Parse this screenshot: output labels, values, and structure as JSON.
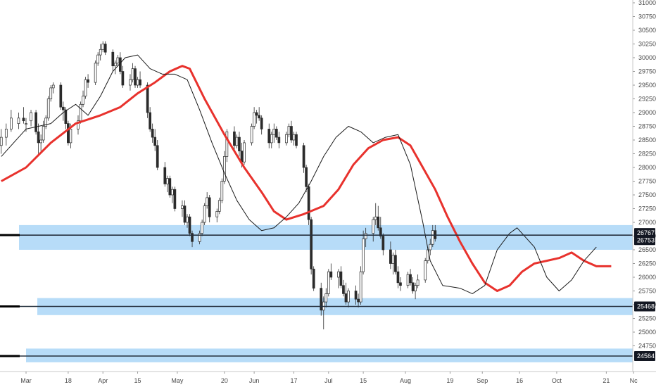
{
  "chart_data": {
    "type": "candlestick",
    "title": "",
    "xlabel": "",
    "ylabel": "",
    "ylim": [
      24300,
      31050
    ],
    "grid": false,
    "y_ticks": [
      24750,
      25000,
      25250,
      25500,
      25750,
      26000,
      26250,
      26500,
      26750,
      27000,
      27250,
      27500,
      27750,
      28000,
      28250,
      28500,
      28750,
      29000,
      29250,
      29500,
      29750,
      30000,
      30250,
      30500,
      30750,
      31000
    ],
    "x_ticks": [
      {
        "label": "Mar",
        "day": 0
      },
      {
        "label": "18",
        "day": 17
      },
      {
        "label": "Apr",
        "day": 31
      },
      {
        "label": "15",
        "day": 45
      },
      {
        "label": "May",
        "day": 61
      },
      {
        "label": "20",
        "day": 80
      },
      {
        "label": "Jun",
        "day": 92
      },
      {
        "label": "17",
        "day": 108
      },
      {
        "label": "Jul",
        "day": 122
      },
      {
        "label": "15",
        "day": 136
      },
      {
        "label": "Aug",
        "day": 153
      },
      {
        "label": "19",
        "day": 171
      },
      {
        "label": "Sep",
        "day": 184
      },
      {
        "label": "16",
        "day": 199
      },
      {
        "label": "Oct",
        "day": 214
      },
      {
        "label": "21",
        "day": 234
      },
      {
        "label": "Nc",
        "day": 245
      }
    ],
    "levels": [
      {
        "value": 26767,
        "label": "26767",
        "zone": [
          26500,
          26950
        ],
        "line_color": "#26313f",
        "zone_color": "#9fd0f5"
      },
      {
        "value": 25468,
        "label": "25468",
        "zone": [
          25310,
          25620
        ],
        "line_color": "#26313f",
        "zone_color": "#9fd0f5"
      },
      {
        "value": 24564,
        "label": "24564",
        "zone": [
          24450,
          24700
        ],
        "line_color": "#26313f",
        "zone_color": "#9fd0f5"
      }
    ],
    "last_price": {
      "value": 26753,
      "label": "26753"
    },
    "series": [
      {
        "kind": "moving-average",
        "color": "#e8322d",
        "points": [
          [
            -10,
            27750
          ],
          [
            0,
            28000
          ],
          [
            10,
            28450
          ],
          [
            20,
            28800
          ],
          [
            30,
            28950
          ],
          [
            38,
            29100
          ],
          [
            45,
            29350
          ],
          [
            52,
            29550
          ],
          [
            58,
            29750
          ],
          [
            63,
            29850
          ],
          [
            66,
            29800
          ],
          [
            72,
            29250
          ],
          [
            80,
            28600
          ],
          [
            88,
            28000
          ],
          [
            95,
            27550
          ],
          [
            100,
            27200
          ],
          [
            105,
            27050
          ],
          [
            112,
            27150
          ],
          [
            120,
            27300
          ],
          [
            126,
            27600
          ],
          [
            132,
            28050
          ],
          [
            138,
            28350
          ],
          [
            144,
            28500
          ],
          [
            150,
            28550
          ],
          [
            155,
            28400
          ],
          [
            160,
            28000
          ],
          [
            165,
            27600
          ],
          [
            170,
            27100
          ],
          [
            175,
            26650
          ],
          [
            180,
            26250
          ],
          [
            185,
            25900
          ],
          [
            190,
            25750
          ],
          [
            195,
            25850
          ],
          [
            200,
            26100
          ],
          [
            205,
            26250
          ],
          [
            210,
            26300
          ],
          [
            215,
            26350
          ],
          [
            220,
            26450
          ],
          [
            225,
            26300
          ],
          [
            230,
            26200
          ],
          [
            236,
            26200
          ]
        ]
      },
      {
        "kind": "moving-average",
        "color": "#1a1a1a",
        "points": [
          [
            -10,
            28200
          ],
          [
            0,
            28700
          ],
          [
            10,
            28800
          ],
          [
            15,
            29000
          ],
          [
            20,
            29150
          ],
          [
            25,
            28950
          ],
          [
            30,
            29300
          ],
          [
            35,
            29750
          ],
          [
            40,
            30000
          ],
          [
            45,
            30050
          ],
          [
            50,
            29800
          ],
          [
            55,
            29700
          ],
          [
            60,
            29700
          ],
          [
            65,
            29600
          ],
          [
            70,
            29050
          ],
          [
            75,
            28450
          ],
          [
            80,
            27900
          ],
          [
            85,
            27400
          ],
          [
            90,
            27050
          ],
          [
            95,
            26850
          ],
          [
            100,
            26900
          ],
          [
            105,
            27100
          ],
          [
            110,
            27350
          ],
          [
            115,
            27750
          ],
          [
            120,
            28200
          ],
          [
            125,
            28550
          ],
          [
            130,
            28750
          ],
          [
            135,
            28650
          ],
          [
            140,
            28450
          ],
          [
            145,
            28550
          ],
          [
            150,
            28600
          ],
          [
            155,
            28050
          ],
          [
            160,
            27000
          ],
          [
            163,
            26300
          ],
          [
            168,
            25850
          ],
          [
            175,
            25800
          ],
          [
            180,
            25700
          ],
          [
            185,
            25850
          ],
          [
            190,
            26500
          ],
          [
            195,
            26800
          ],
          [
            198,
            26900
          ],
          [
            205,
            26550
          ],
          [
            210,
            26000
          ],
          [
            215,
            25750
          ],
          [
            220,
            25950
          ],
          [
            225,
            26300
          ],
          [
            230,
            26550
          ]
        ]
      }
    ],
    "candles": [
      [
        -10,
        28400,
        28700,
        28250,
        28550
      ],
      [
        -8,
        28550,
        28800,
        28400,
        28700
      ],
      [
        -6,
        28700,
        29050,
        28650,
        28900
      ],
      [
        -3,
        28800,
        29000,
        28700,
        28900
      ],
      [
        -1,
        28900,
        29100,
        28800,
        28850
      ],
      [
        0,
        28800,
        28900,
        28650,
        28800
      ],
      [
        2,
        28850,
        29050,
        28750,
        29000
      ],
      [
        4,
        29000,
        29050,
        28600,
        28650
      ],
      [
        5,
        28650,
        28800,
        28250,
        28450
      ],
      [
        6,
        28450,
        28600,
        28300,
        28500
      ],
      [
        7,
        28500,
        28850,
        28450,
        28750
      ],
      [
        8,
        28750,
        28950,
        28700,
        28900
      ],
      [
        9,
        28900,
        29300,
        28850,
        29250
      ],
      [
        10,
        29250,
        29500,
        29200,
        29450
      ],
      [
        11,
        29450,
        29550,
        29350,
        29500
      ],
      [
        14,
        29500,
        29550,
        29050,
        29100
      ],
      [
        15,
        29100,
        29200,
        28850,
        29050
      ],
      [
        16,
        29050,
        29100,
        28700,
        28800
      ],
      [
        17,
        28800,
        28850,
        28400,
        28450
      ],
      [
        18,
        28450,
        28800,
        28350,
        28700
      ],
      [
        21,
        28700,
        28950,
        28600,
        28850
      ],
      [
        22,
        28850,
        29200,
        28800,
        29150
      ],
      [
        23,
        29150,
        29400,
        29100,
        29300
      ],
      [
        24,
        29300,
        29650,
        29250,
        29600
      ],
      [
        25,
        29600,
        29700,
        29450,
        29550
      ],
      [
        28,
        29550,
        29950,
        29500,
        29900
      ],
      [
        29,
        29900,
        30100,
        29850,
        30050
      ],
      [
        30,
        30050,
        30250,
        29950,
        30150
      ],
      [
        31,
        30150,
        30300,
        30100,
        30250
      ],
      [
        32,
        30250,
        30300,
        30050,
        30100
      ],
      [
        35,
        30100,
        30150,
        29750,
        29850
      ],
      [
        36,
        29850,
        29950,
        29700,
        29900
      ],
      [
        37,
        29900,
        30050,
        29850,
        30000
      ],
      [
        38,
        30000,
        30100,
        29700,
        29750
      ],
      [
        39,
        29750,
        29850,
        29450,
        29500
      ],
      [
        42,
        29500,
        29700,
        29400,
        29600
      ],
      [
        43,
        29600,
        29900,
        29550,
        29800
      ],
      [
        44,
        29800,
        29850,
        29450,
        29500
      ],
      [
        45,
        29500,
        29650,
        29450,
        29600
      ],
      [
        46,
        29600,
        29750,
        29450,
        29500
      ],
      [
        49,
        29500,
        29550,
        28900,
        29000
      ],
      [
        50,
        29000,
        29100,
        28650,
        28700
      ],
      [
        51,
        28700,
        28800,
        28450,
        28550
      ],
      [
        52,
        28550,
        28700,
        28300,
        28400
      ],
      [
        53,
        28400,
        28500,
        27950,
        28000
      ],
      [
        56,
        28000,
        28100,
        27650,
        27700
      ],
      [
        57,
        27700,
        27850,
        27550,
        27800
      ],
      [
        58,
        27800,
        27850,
        27450,
        27500
      ],
      [
        59,
        27500,
        27650,
        27350,
        27600
      ],
      [
        60,
        27600,
        27650,
        27200,
        27250
      ],
      [
        63,
        27250,
        27400,
        27100,
        27300
      ],
      [
        64,
        27300,
        27400,
        26950,
        27000
      ],
      [
        65,
        27000,
        27150,
        26900,
        27100
      ],
      [
        66,
        27100,
        27150,
        26750,
        26800
      ],
      [
        67,
        26800,
        26850,
        26550,
        26650
      ],
      [
        70,
        26650,
        26850,
        26600,
        26800
      ],
      [
        71,
        26800,
        27050,
        26750,
        27000
      ],
      [
        72,
        27000,
        27350,
        26950,
        27300
      ],
      [
        73,
        27300,
        27550,
        27250,
        27450
      ],
      [
        74,
        27450,
        27500,
        27000,
        27100
      ],
      [
        77,
        27100,
        27250,
        27000,
        27200
      ],
      [
        78,
        27200,
        27450,
        27150,
        27400
      ],
      [
        79,
        27400,
        27800,
        27350,
        27750
      ],
      [
        80,
        27750,
        28300,
        27700,
        28200
      ],
      [
        81,
        28200,
        28700,
        28100,
        28650
      ],
      [
        84,
        28650,
        28750,
        28300,
        28400
      ],
      [
        85,
        28400,
        28600,
        28350,
        28550
      ],
      [
        86,
        28550,
        28650,
        28200,
        28300
      ],
      [
        87,
        28300,
        28450,
        28000,
        28100
      ],
      [
        88,
        28100,
        28500,
        28050,
        28450
      ],
      [
        91,
        28450,
        28800,
        28400,
        28750
      ],
      [
        92,
        28750,
        29100,
        28700,
        29000
      ],
      [
        93,
        29000,
        29050,
        28800,
        28950
      ],
      [
        94,
        28950,
        29100,
        28850,
        28900
      ],
      [
        95,
        28900,
        28950,
        28600,
        28700
      ],
      [
        98,
        28700,
        28800,
        28350,
        28450
      ],
      [
        99,
        28450,
        28650,
        28350,
        28600
      ],
      [
        100,
        28600,
        28800,
        28450,
        28700
      ],
      [
        101,
        28700,
        28750,
        28500,
        28550
      ],
      [
        102,
        28550,
        28650,
        28350,
        28450
      ],
      [
        105,
        28450,
        28650,
        28400,
        28600
      ],
      [
        106,
        28600,
        28800,
        28550,
        28750
      ],
      [
        107,
        28750,
        28850,
        28450,
        28500
      ],
      [
        108,
        28500,
        28650,
        28400,
        28600
      ],
      [
        109,
        28600,
        28650,
        28350,
        28400
      ],
      [
        112,
        28400,
        28450,
        27900,
        28000
      ],
      [
        113,
        28000,
        28050,
        27550,
        27650
      ],
      [
        114,
        27650,
        27700,
        26950,
        27050
      ],
      [
        115,
        27050,
        27100,
        26050,
        26150
      ],
      [
        116,
        26150,
        26200,
        25750,
        25800
      ],
      [
        119,
        25800,
        25900,
        25300,
        25400
      ],
      [
        120,
        25400,
        25650,
        25050,
        25550
      ],
      [
        121,
        25550,
        25800,
        25450,
        25700
      ],
      [
        122,
        25700,
        26150,
        25650,
        26100
      ],
      [
        123,
        26100,
        26250,
        25950,
        26000
      ],
      [
        126,
        26000,
        26150,
        25800,
        26100
      ],
      [
        127,
        26100,
        26200,
        25800,
        25850
      ],
      [
        128,
        25850,
        25950,
        25650,
        25700
      ],
      [
        129,
        25700,
        25900,
        25500,
        25550
      ],
      [
        130,
        25550,
        25800,
        25450,
        25750
      ],
      [
        133,
        25750,
        25850,
        25500,
        25600
      ],
      [
        134,
        25600,
        25700,
        25450,
        25550
      ],
      [
        135,
        25550,
        26200,
        25500,
        26100
      ],
      [
        136,
        26100,
        26850,
        26050,
        26700
      ],
      [
        137,
        26700,
        26900,
        26550,
        26800
      ],
      [
        140,
        26800,
        27100,
        26650,
        27050
      ],
      [
        141,
        27050,
        27350,
        26950,
        27100
      ],
      [
        142,
        27100,
        27300,
        26850,
        26900
      ],
      [
        143,
        26900,
        27100,
        26700,
        26750
      ],
      [
        144,
        26750,
        26800,
        26400,
        26500
      ],
      [
        147,
        26500,
        26650,
        26150,
        26250
      ],
      [
        148,
        26250,
        26450,
        26050,
        26400
      ],
      [
        149,
        26400,
        26500,
        26050,
        26100
      ],
      [
        150,
        26100,
        26200,
        25800,
        25900
      ],
      [
        151,
        25900,
        26000,
        25750,
        25850
      ],
      [
        154,
        25850,
        26100,
        25800,
        26050
      ],
      [
        155,
        26050,
        26150,
        25850,
        25900
      ],
      [
        156,
        25900,
        26000,
        25700,
        25750
      ],
      [
        157,
        25750,
        25900,
        25600,
        25850
      ],
      [
        158,
        25850,
        26050,
        25800,
        25950
      ],
      [
        161,
        25950,
        26350,
        25900,
        26300
      ],
      [
        162,
        26300,
        26550,
        26250,
        26500
      ],
      [
        163,
        26500,
        26700,
        26400,
        26600
      ],
      [
        164,
        26600,
        26950,
        26550,
        26850
      ],
      [
        165,
        26850,
        26950,
        26650,
        26700
      ]
    ]
  }
}
